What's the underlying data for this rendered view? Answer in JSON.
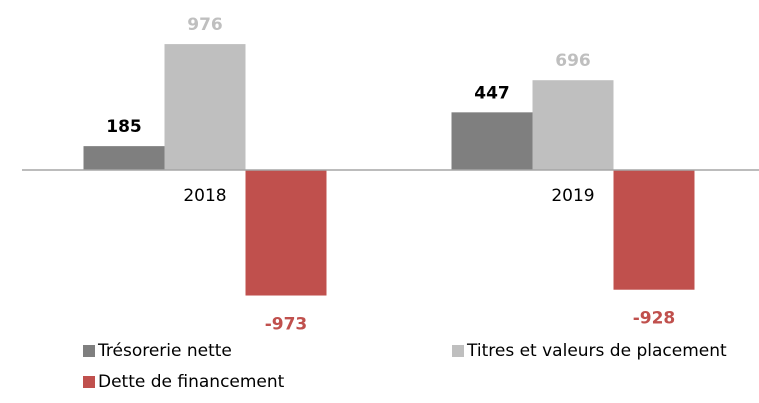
{
  "chart_data": {
    "type": "bar",
    "categories": [
      "2018",
      "2019"
    ],
    "series": [
      {
        "name": "Trésorerie nette",
        "color": "#7f7f7f",
        "label_color": "#000000",
        "values": [
          185,
          447
        ]
      },
      {
        "name": "Titres et valeurs de placement",
        "color": "#bfbfbf",
        "label_color": "#bfbfbf",
        "values": [
          976,
          696
        ]
      },
      {
        "name": "Dette de financement",
        "color": "#c0504d",
        "label_color": "#c0504d",
        "values": [
          -973,
          -928
        ]
      }
    ],
    "ylim": [
      -1000,
      1000
    ]
  }
}
